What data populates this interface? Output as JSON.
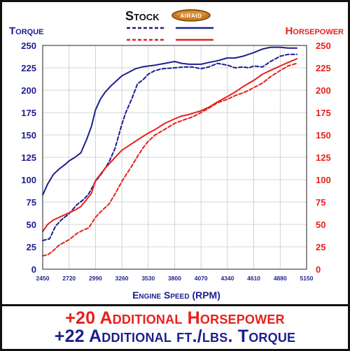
{
  "chart_data": {
    "type": "line",
    "title": "",
    "xlabel": "Engine Speed (RPM)",
    "ylabel_left": "Torque",
    "ylabel_right": "Horsepower",
    "xlim": [
      2450,
      5150
    ],
    "ylim_left": [
      0,
      250
    ],
    "ylim_right": [
      0,
      250
    ],
    "x_ticks": [
      2450,
      2720,
      2990,
      3260,
      3530,
      3800,
      4070,
      4340,
      4610,
      4880,
      5150
    ],
    "y_ticks": [
      0,
      25,
      50,
      75,
      100,
      125,
      150,
      175,
      200,
      225,
      250
    ],
    "grid": true,
    "legend": {
      "stock_label": "Stock",
      "airaid_label": "AIRAID"
    },
    "series": [
      {
        "name": "Stock Torque",
        "axis": "left",
        "color": "#1c1f8f",
        "dashed": true,
        "points": [
          [
            2450,
            32
          ],
          [
            2520,
            34
          ],
          [
            2580,
            48
          ],
          [
            2640,
            55
          ],
          [
            2720,
            62
          ],
          [
            2800,
            72
          ],
          [
            2870,
            78
          ],
          [
            2920,
            84
          ],
          [
            2990,
            98
          ],
          [
            3060,
            108
          ],
          [
            3130,
            120
          ],
          [
            3190,
            135
          ],
          [
            3260,
            162
          ],
          [
            3300,
            175
          ],
          [
            3360,
            190
          ],
          [
            3420,
            207
          ],
          [
            3480,
            212
          ],
          [
            3530,
            218
          ],
          [
            3600,
            222
          ],
          [
            3680,
            224
          ],
          [
            3800,
            225
          ],
          [
            3900,
            226
          ],
          [
            3980,
            226
          ],
          [
            4070,
            224
          ],
          [
            4150,
            226
          ],
          [
            4240,
            230
          ],
          [
            4340,
            228
          ],
          [
            4420,
            225
          ],
          [
            4500,
            226
          ],
          [
            4560,
            225
          ],
          [
            4610,
            227
          ],
          [
            4700,
            226
          ],
          [
            4780,
            232
          ],
          [
            4880,
            238
          ],
          [
            4960,
            240
          ],
          [
            5050,
            240
          ]
        ]
      },
      {
        "name": "AIRAID Torque",
        "axis": "left",
        "color": "#1c1f8f",
        "dashed": false,
        "points": [
          [
            2450,
            83
          ],
          [
            2500,
            95
          ],
          [
            2560,
            106
          ],
          [
            2620,
            112
          ],
          [
            2680,
            117
          ],
          [
            2720,
            121
          ],
          [
            2780,
            125
          ],
          [
            2840,
            130
          ],
          [
            2900,
            145
          ],
          [
            2950,
            160
          ],
          [
            2990,
            178
          ],
          [
            3040,
            190
          ],
          [
            3090,
            198
          ],
          [
            3150,
            205
          ],
          [
            3200,
            210
          ],
          [
            3260,
            216
          ],
          [
            3330,
            220
          ],
          [
            3400,
            224
          ],
          [
            3470,
            226
          ],
          [
            3530,
            227
          ],
          [
            3600,
            228
          ],
          [
            3700,
            230
          ],
          [
            3800,
            232
          ],
          [
            3870,
            230
          ],
          [
            3950,
            229
          ],
          [
            4070,
            229
          ],
          [
            4150,
            231
          ],
          [
            4240,
            233
          ],
          [
            4340,
            236
          ],
          [
            4420,
            236
          ],
          [
            4500,
            238
          ],
          [
            4610,
            242
          ],
          [
            4700,
            246
          ],
          [
            4780,
            248
          ],
          [
            4880,
            248
          ],
          [
            4960,
            247
          ],
          [
            5050,
            247
          ]
        ]
      },
      {
        "name": "Stock Horsepower",
        "axis": "right",
        "color": "#e8201c",
        "dashed": true,
        "points": [
          [
            2450,
            15
          ],
          [
            2500,
            16
          ],
          [
            2550,
            20
          ],
          [
            2620,
            27
          ],
          [
            2720,
            33
          ],
          [
            2800,
            40
          ],
          [
            2870,
            44
          ],
          [
            2920,
            46
          ],
          [
            2990,
            58
          ],
          [
            3060,
            66
          ],
          [
            3130,
            73
          ],
          [
            3190,
            84
          ],
          [
            3260,
            98
          ],
          [
            3300,
            105
          ],
          [
            3360,
            115
          ],
          [
            3420,
            126
          ],
          [
            3480,
            136
          ],
          [
            3530,
            143
          ],
          [
            3600,
            150
          ],
          [
            3680,
            155
          ],
          [
            3800,
            163
          ],
          [
            3900,
            167
          ],
          [
            3980,
            170
          ],
          [
            4070,
            175
          ],
          [
            4150,
            180
          ],
          [
            4240,
            186
          ],
          [
            4340,
            190
          ],
          [
            4420,
            194
          ],
          [
            4500,
            197
          ],
          [
            4560,
            200
          ],
          [
            4610,
            203
          ],
          [
            4700,
            208
          ],
          [
            4780,
            215
          ],
          [
            4880,
            222
          ],
          [
            4960,
            227
          ],
          [
            5050,
            230
          ]
        ]
      },
      {
        "name": "AIRAID Horsepower",
        "axis": "right",
        "color": "#e8201c",
        "dashed": false,
        "points": [
          [
            2450,
            42
          ],
          [
            2500,
            50
          ],
          [
            2560,
            55
          ],
          [
            2620,
            58
          ],
          [
            2680,
            61
          ],
          [
            2720,
            63
          ],
          [
            2780,
            66
          ],
          [
            2840,
            70
          ],
          [
            2900,
            78
          ],
          [
            2950,
            85
          ],
          [
            2990,
            99
          ],
          [
            3040,
            106
          ],
          [
            3090,
            113
          ],
          [
            3150,
            120
          ],
          [
            3200,
            126
          ],
          [
            3260,
            133
          ],
          [
            3330,
            138
          ],
          [
            3400,
            143
          ],
          [
            3470,
            148
          ],
          [
            3530,
            152
          ],
          [
            3600,
            156
          ],
          [
            3700,
            163
          ],
          [
            3800,
            168
          ],
          [
            3870,
            171
          ],
          [
            3950,
            173
          ],
          [
            4070,
            177
          ],
          [
            4150,
            181
          ],
          [
            4240,
            187
          ],
          [
            4340,
            193
          ],
          [
            4420,
            198
          ],
          [
            4500,
            204
          ],
          [
            4610,
            211
          ],
          [
            4700,
            218
          ],
          [
            4780,
            222
          ],
          [
            4880,
            227
          ],
          [
            4960,
            231
          ],
          [
            5050,
            235
          ]
        ]
      }
    ]
  },
  "footer": {
    "line1": "+20 Additional Horsepower",
    "line2": "+22 Additional ft./lbs. Torque",
    "line1_color": "#e8201c",
    "line2_color": "#1c1f8f"
  },
  "colors": {
    "torque": "#1c1f8f",
    "horsepower": "#e8201c",
    "badge_fill": "#c77a1a",
    "badge_rim": "#7a4208"
  }
}
